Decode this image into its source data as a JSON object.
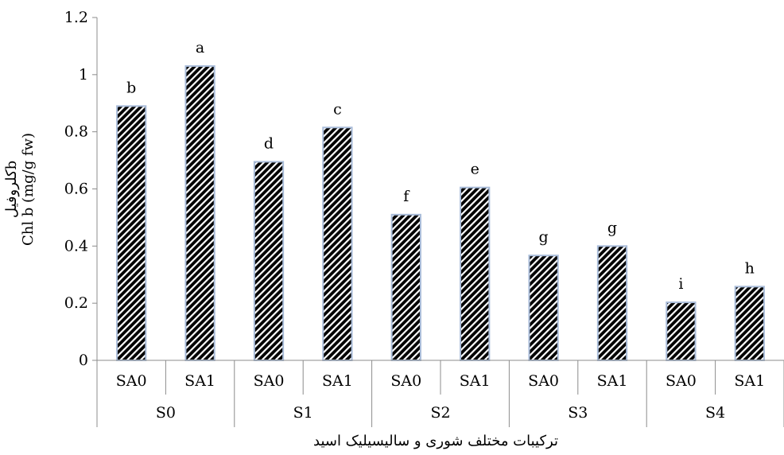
{
  "chart_data": {
    "type": "bar",
    "groups": [
      "S0",
      "S1",
      "S2",
      "S3",
      "S4"
    ],
    "subcategories": [
      "SA0",
      "SA1"
    ],
    "values": [
      0.89,
      1.03,
      0.695,
      0.815,
      0.51,
      0.605,
      0.367,
      0.4,
      0.203,
      0.258
    ],
    "letters": [
      "b",
      "a",
      "d",
      "c",
      "f",
      "e",
      "g",
      "g",
      "i",
      "h"
    ],
    "yticks": [
      "0",
      "0.2",
      "0.4",
      "0.6",
      "0.8",
      "1",
      "1.2"
    ],
    "ylim": [
      0,
      1.2
    ],
    "ylabel_fa": "کلروفیلb",
    "ylabel_en": "Chl b (mg/g fw)",
    "xlabel": "ترکیبات مختلف شوری و سالیسیلیک اسید",
    "colors": {
      "bar_fill": "#000000",
      "bar_pattern": "#ffffff",
      "bar_border": "#a9bcd9",
      "axis": "#8c8c8c"
    },
    "pattern": "diagonal-hatch",
    "grid": false,
    "legend": "none"
  }
}
